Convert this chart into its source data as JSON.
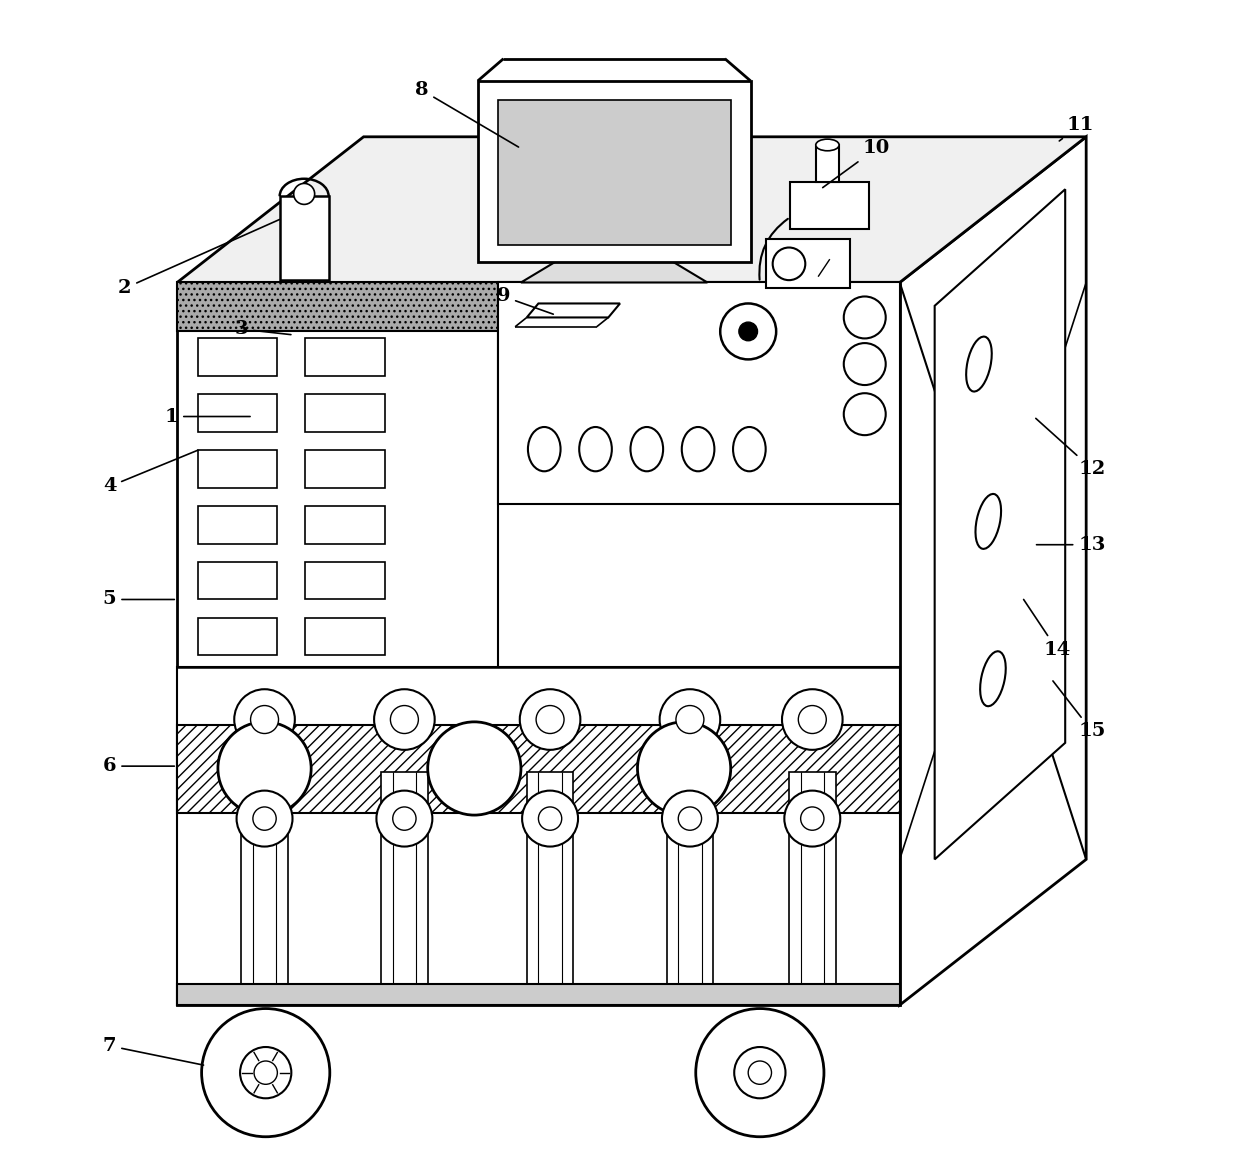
{
  "bg_color": "#ffffff",
  "fig_w": 12.4,
  "fig_h": 11.71,
  "annotations": {
    "1": {
      "lpos": [
        0.115,
        0.645
      ],
      "pt": [
        0.185,
        0.645
      ]
    },
    "2": {
      "lpos": [
        0.075,
        0.755
      ],
      "pt": [
        0.21,
        0.815
      ]
    },
    "3": {
      "lpos": [
        0.175,
        0.72
      ],
      "pt": [
        0.22,
        0.715
      ]
    },
    "4": {
      "lpos": [
        0.062,
        0.585
      ],
      "pt": [
        0.14,
        0.617
      ]
    },
    "5": {
      "lpos": [
        0.062,
        0.488
      ],
      "pt": [
        0.12,
        0.488
      ]
    },
    "6": {
      "lpos": [
        0.062,
        0.345
      ],
      "pt": [
        0.12,
        0.345
      ]
    },
    "7": {
      "lpos": [
        0.062,
        0.105
      ],
      "pt": [
        0.145,
        0.088
      ]
    },
    "8": {
      "lpos": [
        0.33,
        0.925
      ],
      "pt": [
        0.415,
        0.875
      ]
    },
    "9": {
      "lpos": [
        0.4,
        0.748
      ],
      "pt": [
        0.445,
        0.732
      ]
    },
    "10": {
      "lpos": [
        0.72,
        0.875
      ],
      "pt": [
        0.672,
        0.84
      ]
    },
    "11": {
      "lpos": [
        0.895,
        0.895
      ],
      "pt": [
        0.875,
        0.88
      ]
    },
    "12": {
      "lpos": [
        0.905,
        0.6
      ],
      "pt": [
        0.855,
        0.645
      ]
    },
    "13": {
      "lpos": [
        0.905,
        0.535
      ],
      "pt": [
        0.855,
        0.535
      ]
    },
    "14": {
      "lpos": [
        0.875,
        0.445
      ],
      "pt": [
        0.845,
        0.49
      ]
    },
    "15": {
      "lpos": [
        0.905,
        0.375
      ],
      "pt": [
        0.87,
        0.42
      ]
    }
  }
}
